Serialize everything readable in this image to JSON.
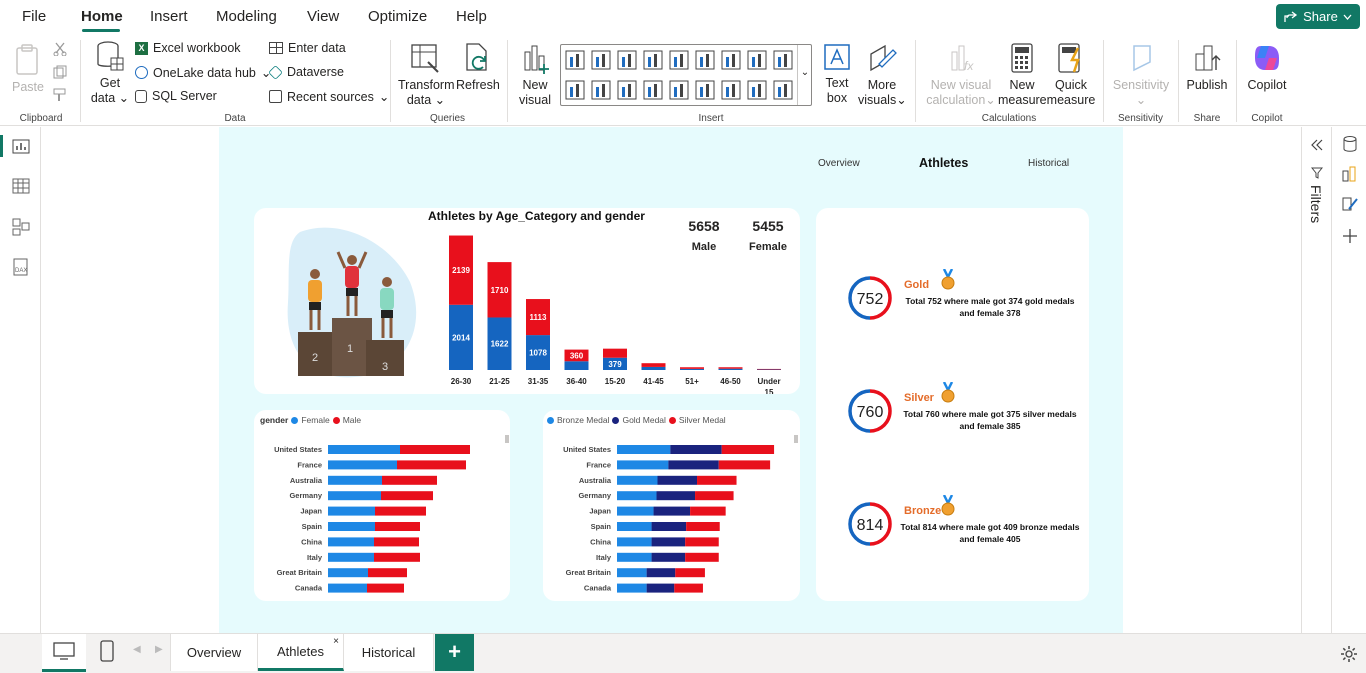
{
  "menu": {
    "items": [
      "File",
      "Home",
      "Insert",
      "Modeling",
      "View",
      "Optimize",
      "Help"
    ],
    "active": "Home",
    "share": "Share"
  },
  "ribbon": {
    "clipboard": {
      "paste": "Paste",
      "group": "Clipboard"
    },
    "data": {
      "get_data": "Get",
      "get_data2": "data",
      "excel": "Excel workbook",
      "onelake": "OneLake data hub",
      "sql": "SQL Server",
      "enter": "Enter data",
      "dataverse": "Dataverse",
      "recent": "Recent sources",
      "group": "Data"
    },
    "queries": {
      "transform": "Transform",
      "transform2": "data",
      "refresh": "Refresh",
      "group": "Queries"
    },
    "insert": {
      "new_visual": "New",
      "new_visual2": "visual",
      "text_box": "Text",
      "text_box2": "box",
      "more_visuals": "More",
      "more_visuals2": "visuals",
      "group": "Insert"
    },
    "calc": {
      "new_visual_calc": "New visual",
      "new_visual_calc2": "calculation",
      "new_measure": "New",
      "new_measure2": "measure",
      "quick_measure": "Quick",
      "quick_measure2": "measure",
      "group": "Calculations"
    },
    "sensitivity": {
      "label": "Sensitivity",
      "group": "Sensitivity"
    },
    "share": {
      "publish": "Publish",
      "group": "Share"
    },
    "copilot": {
      "label": "Copilot",
      "group": "Copilot"
    }
  },
  "filters_label": "Filters",
  "report": {
    "nav": {
      "overview": "Overview",
      "athletes": "Athletes",
      "historical": "Historical"
    },
    "totals": {
      "male_value": "5658",
      "male_label": "Male",
      "female_value": "5455",
      "female_label": "Female"
    },
    "podium": {
      "first": "1",
      "second": "2",
      "third": "3"
    },
    "medals": [
      {
        "count": "752",
        "name": "Gold",
        "text": "Total 752 where male got 374 gold medals and female 378",
        "color": "#e46c2a"
      },
      {
        "count": "760",
        "name": "Silver",
        "text": "Total 760 where male got 375 silver medals and female 385",
        "color": "#e46c2a"
      },
      {
        "count": "814",
        "name": "Bronze",
        "text": "Total 814 where male got 409 bronze medals and female 405",
        "color": "#e46c2a"
      }
    ]
  },
  "chart_data": [
    {
      "type": "bar",
      "title": "Athletes by Age_Category and gender",
      "categories": [
        "26-30",
        "21-25",
        "31-35",
        "36-40",
        "15-20",
        "41-45",
        "51+",
        "46-50",
        "Under 15"
      ],
      "series": [
        {
          "values": [
            2014,
            1622,
            1078,
            270,
            379,
            95,
            35,
            40,
            15
          ],
          "color": "#1565c0"
        },
        {
          "values": [
            2139,
            1710,
            1113,
            360,
            280,
            115,
            50,
            45,
            18
          ],
          "color": "#e8101c"
        }
      ],
      "labels": {
        "blue": [
          "2014",
          "1622",
          "1078",
          "",
          "379",
          "",
          "",
          "",
          ""
        ],
        "red": [
          "2139",
          "1710",
          "1113",
          "360",
          "",
          "",
          "",
          "",
          ""
        ]
      }
    },
    {
      "type": "bar",
      "orientation": "horizontal",
      "legend_title": "gender",
      "categories": [
        "United States",
        "France",
        "Australia",
        "Germany",
        "Japan",
        "Spain",
        "China",
        "Italy",
        "Great Britain",
        "Canada"
      ],
      "series": [
        {
          "name": "Female",
          "values": [
            72,
            69,
            54,
            53,
            47,
            47,
            46,
            46,
            40,
            39
          ],
          "color": "#1e88e5"
        },
        {
          "name": "Male",
          "values": [
            70,
            69,
            55,
            52,
            51,
            45,
            45,
            46,
            39,
            37
          ],
          "color": "#e8101c"
        }
      ],
      "xlim": [
        0,
        150
      ]
    },
    {
      "type": "bar",
      "orientation": "horizontal",
      "categories": [
        "United States",
        "France",
        "Australia",
        "Germany",
        "Japan",
        "Spain",
        "China",
        "Italy",
        "Great Britain",
        "Canada"
      ],
      "series": [
        {
          "name": "Bronze Medal",
          "values": [
            54,
            52,
            41,
            40,
            37,
            35,
            35,
            35,
            30,
            30
          ],
          "color": "#1e88e5"
        },
        {
          "name": "Gold Medal",
          "values": [
            52,
            51,
            40,
            39,
            37,
            35,
            34,
            34,
            29,
            28
          ],
          "color": "#1a237e"
        },
        {
          "name": "Silver Medal",
          "values": [
            53,
            52,
            40,
            39,
            36,
            34,
            34,
            34,
            30,
            29
          ],
          "color": "#e8101c"
        }
      ],
      "xlim": [
        0,
        165
      ]
    }
  ],
  "pages": {
    "tabs": [
      "Overview",
      "Athletes",
      "Historical"
    ],
    "active": "Athletes",
    "add": "+"
  }
}
